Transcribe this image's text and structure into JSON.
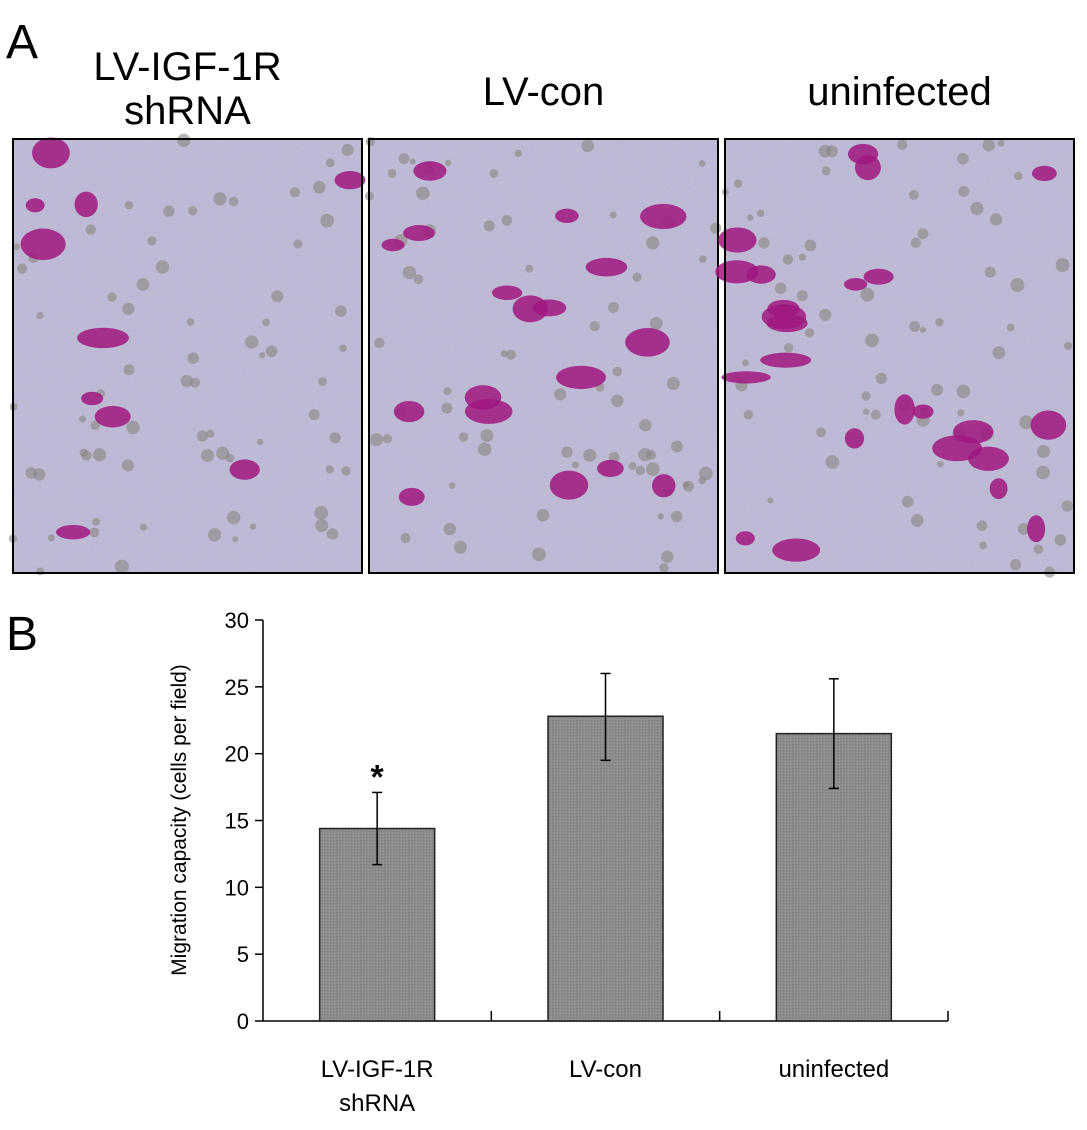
{
  "panel_a": {
    "label": "A",
    "columns": [
      {
        "title_lines": [
          "LV-IGF-1R",
          "shRNA"
        ]
      },
      {
        "title_lines": [
          "LV-con"
        ]
      },
      {
        "title_lines": [
          "uninfected"
        ]
      }
    ],
    "image_colors": {
      "background": "#b7b3cf",
      "stain": "#a0187f"
    }
  },
  "panel_b": {
    "label": "B"
  },
  "chart_data": {
    "type": "bar",
    "title": "",
    "xlabel": "",
    "ylabel": "Migration capacity (cells per field)",
    "ylim": [
      0,
      30
    ],
    "yticks": [
      0,
      5,
      10,
      15,
      20,
      25,
      30
    ],
    "categories": [
      [
        "LV-IGF-1R",
        "shRNA"
      ],
      [
        "LV-con"
      ],
      [
        "uninfected"
      ]
    ],
    "values": [
      14.4,
      22.8,
      21.5
    ],
    "error_low": [
      11.7,
      19.5,
      17.4
    ],
    "error_high": [
      17.1,
      26.0,
      25.6
    ],
    "annotations": [
      "*",
      "",
      ""
    ],
    "bar_color": "#8a8a8a",
    "grid": false,
    "legend": "none"
  }
}
